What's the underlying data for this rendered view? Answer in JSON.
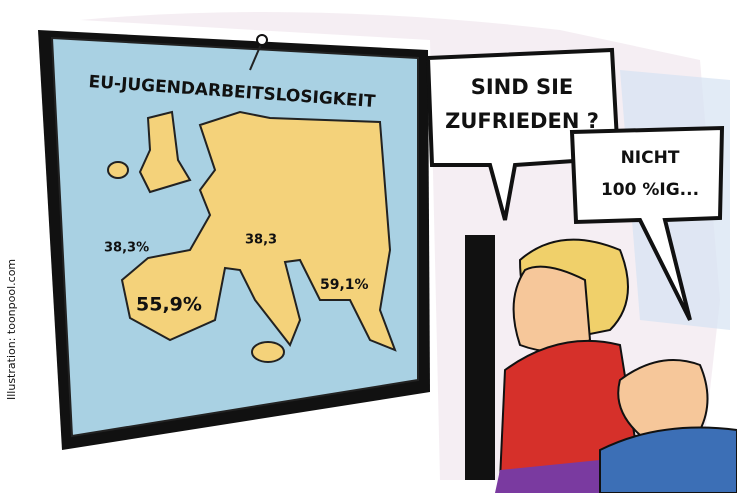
{
  "board": {
    "title": "EU-JUGENDARBEITSLOSIGKEIT",
    "labels": [
      "38,3%",
      "38,3",
      "55,9%",
      "59,1%"
    ]
  },
  "bubbles": [
    {
      "lines": [
        "SIND SIE",
        "ZUFRIEDEN ?"
      ]
    },
    {
      "lines": [
        "NICHT",
        "100 %IG..."
      ]
    }
  ],
  "credit": "Illustration: toonpool.com"
}
